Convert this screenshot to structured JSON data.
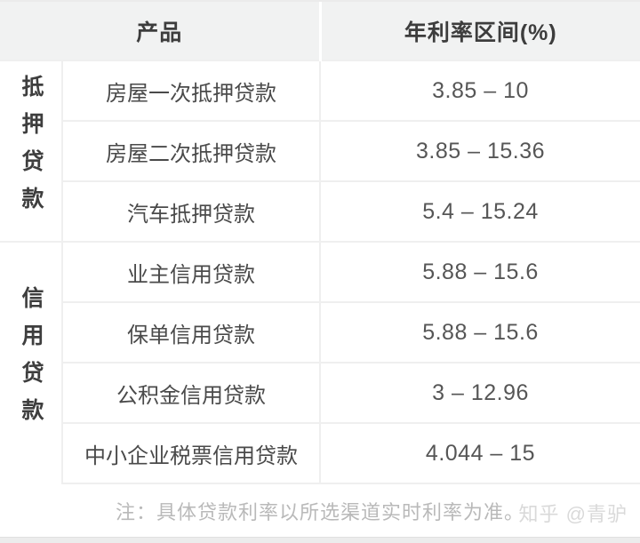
{
  "header": {
    "product": "产品",
    "rate": "年利率区间(%)"
  },
  "groups": [
    {
      "label": "抵押贷款",
      "rows": [
        {
          "product": "房屋一次抵押贷款",
          "rate": "3.85 – 10"
        },
        {
          "product": "房屋二次抵押贷款",
          "rate": "3.85 – 15.36"
        },
        {
          "product": "汽车抵押贷款",
          "rate": "5.4 – 15.24"
        }
      ]
    },
    {
      "label": "信用贷款",
      "rows": [
        {
          "product": "业主信用贷款",
          "rate": "5.88 – 15.6"
        },
        {
          "product": "保单信用贷款",
          "rate": "5.88 – 15.6"
        },
        {
          "product": "公积金信用贷款",
          "rate": "3 – 12.96"
        },
        {
          "product": "中小企业税票信用贷款",
          "rate": "4.044 – 15"
        }
      ]
    }
  ],
  "footer": {
    "note": "注：具体贷款利率以所选渠道实时利率为准。",
    "watermark": "知乎 @青驴"
  },
  "colors": {
    "header_bg": "#f1f2f2",
    "border": "#efefef",
    "header_text": "#3d3d3d",
    "product_text": "#4a4a4a",
    "rate_text": "#565656",
    "note_text": "#b9b9b9",
    "watermark_text": "#d9d9d9"
  }
}
